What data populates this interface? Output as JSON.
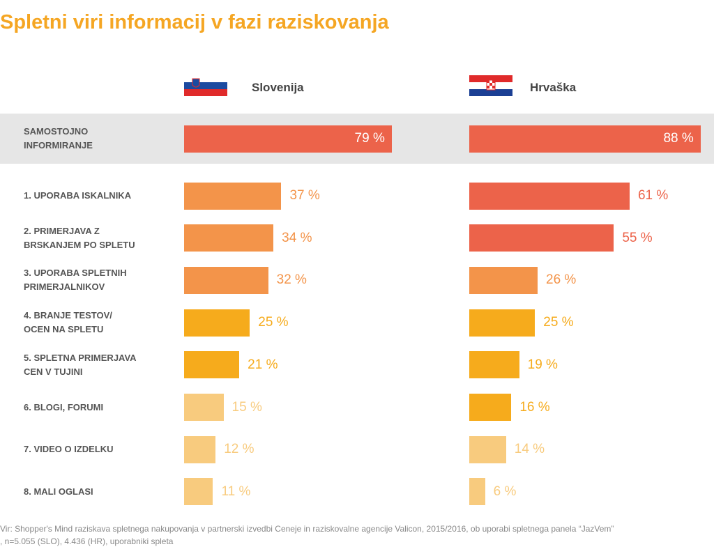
{
  "chart_data": {
    "type": "bar",
    "title": "Spletni viri informacij v fazi raziskovanja",
    "categories": [
      "SAMOSTOJNO\nINFORMIRANJE",
      "1. UPORABA ISKALNIKA",
      "2. PRIMERJAVA Z\nBRSKANJEM PO SPLETU",
      "3. UPORABA SPLETNIH\nPRIMERJALNIKOV",
      "4. BRANJE TESTOV/\nOCEN NA SPLETU",
      "5. SPLETNA PRIMERJAVA\nCEN V TUJINI",
      "6. BLOGI, FORUMI",
      "7. VIDEO O IZDELKU",
      "8. MALI OGLASI"
    ],
    "series": [
      {
        "name": "Slovenija",
        "values": [
          79,
          37,
          34,
          32,
          25,
          21,
          15,
          12,
          11
        ],
        "value_labels": [
          "79 %",
          "37 %",
          "34 %",
          "32 %",
          "25 %",
          "21 %",
          "15 %",
          "12 %",
          "11 %"
        ],
        "colors": [
          "#ec634a",
          "#f3944a",
          "#f3944a",
          "#f3944a",
          "#f6ab1c",
          "#f6ab1c",
          "#f8cb7e",
          "#f8cb7e",
          "#f8cb7e"
        ]
      },
      {
        "name": "Hrvaška",
        "values": [
          88,
          61,
          55,
          26,
          25,
          19,
          16,
          14,
          6
        ],
        "value_labels": [
          "88 %",
          "61 %",
          "55 %",
          "26 %",
          "25 %",
          "19 %",
          "16 %",
          "14 %",
          "6 %"
        ],
        "colors": [
          "#ec634a",
          "#ec634a",
          "#ec634a",
          "#f3944a",
          "#f6ab1c",
          "#f6ab1c",
          "#f6ab1c",
          "#f8cb7e",
          "#f8cb7e"
        ]
      }
    ],
    "footnote": [
      "Vir: Shopper's Mind raziskava spletnega nakupovanja v partnerski izvedbi Ceneje in raziskovalne agencije Valicon, 2015/2016, ob uporabi spletnega panela “JazVem”",
      ", n=5.055 (SLO), 4.436 (HR), uporabniki spleta"
    ]
  }
}
